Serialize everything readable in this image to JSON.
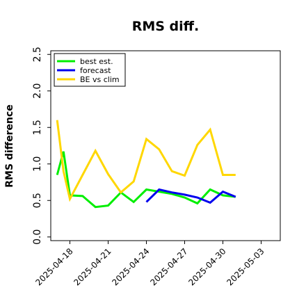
{
  "chart_data": {
    "type": "line",
    "title": "RMS diff.",
    "xlabel": "",
    "ylabel": "RMS difference",
    "ylim": [
      -0.05,
      2.55
    ],
    "yticks": [
      "0.0",
      "0.5",
      "1.0",
      "1.5",
      "2.0",
      "2.5"
    ],
    "ytick_values": [
      0.0,
      0.5,
      1.0,
      1.5,
      2.0,
      2.5
    ],
    "xticks": [
      "2025-04-18",
      "2025-04-21",
      "2025-04-24",
      "2025-04-27",
      "2025-04-30",
      "2025-05-03"
    ],
    "xtick_colors": [
      "#000000",
      "#000000",
      "#228B22",
      "#000000",
      "#000000",
      "#000000"
    ],
    "x_range": [
      "2025-04-16 12:00",
      "2025-05-04 12:00"
    ],
    "grid": false,
    "legend_position": "top-left",
    "series": [
      {
        "name": "best est.",
        "color": "#00ee00",
        "x": [
          "2025-04-17 00:00",
          "2025-04-17 12:00",
          "2025-04-18 00:00",
          "2025-04-19 00:00",
          "2025-04-20 00:00",
          "2025-04-21 00:00",
          "2025-04-22 00:00",
          "2025-04-23 00:00",
          "2025-04-24 00:00",
          "2025-04-25 00:00",
          "2025-04-26 00:00",
          "2025-04-27 00:00",
          "2025-04-28 00:00",
          "2025-04-29 00:00",
          "2025-04-30 00:00",
          "2025-05-01 00:00"
        ],
        "y": [
          0.85,
          1.17,
          0.57,
          0.56,
          0.41,
          0.43,
          0.61,
          0.48,
          0.65,
          0.62,
          0.59,
          0.54,
          0.46,
          0.65,
          0.57,
          0.55
        ]
      },
      {
        "name": "forecast",
        "color": "#0000ee",
        "x": [
          "2025-04-24 00:00",
          "2025-04-25 00:00",
          "2025-04-26 00:00",
          "2025-04-27 00:00",
          "2025-04-28 00:00",
          "2025-04-29 00:00",
          "2025-04-30 00:00",
          "2025-05-01 00:00"
        ],
        "y": [
          0.48,
          0.65,
          0.61,
          0.58,
          0.54,
          0.47,
          0.62,
          0.55
        ]
      },
      {
        "name": "BE vs clim",
        "color": "#ffd700",
        "x": [
          "2025-04-17 00:00",
          "2025-04-17 12:00",
          "2025-04-18 00:00",
          "2025-04-19 00:00",
          "2025-04-20 00:00",
          "2025-04-21 00:00",
          "2025-04-22 00:00",
          "2025-04-23 00:00",
          "2025-04-24 00:00",
          "2025-04-25 00:00",
          "2025-04-26 00:00",
          "2025-04-27 00:00",
          "2025-04-28 00:00",
          "2025-04-29 00:00",
          "2025-04-30 00:00",
          "2025-05-01 00:00"
        ],
        "y": [
          1.6,
          0.9,
          0.52,
          0.85,
          1.18,
          0.86,
          0.61,
          0.76,
          1.34,
          1.2,
          0.9,
          0.84,
          1.26,
          1.47,
          0.85,
          0.85
        ]
      }
    ]
  }
}
